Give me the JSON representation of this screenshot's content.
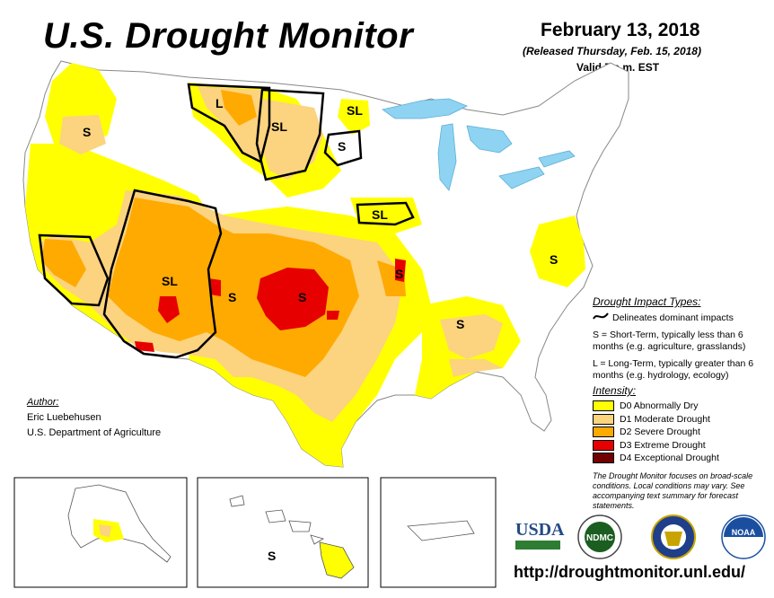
{
  "header": {
    "title": "U.S. Drought Monitor",
    "date": "February 13, 2018",
    "released": "(Released Thursday, Feb. 15, 2018)",
    "valid": "Valid 7 a.m. EST"
  },
  "map": {
    "impact_labels": [
      "L",
      "SL",
      "SL",
      "S",
      "S",
      "SL",
      "SL",
      "S",
      "S",
      "S",
      "S",
      "S",
      "S"
    ],
    "colors": {
      "water": "#8fd3f2",
      "land": "#ffffff",
      "d0": "#ffff00",
      "d1": "#fcd37f",
      "d2": "#ffaa00",
      "d3": "#e60000",
      "d4": "#730000"
    }
  },
  "author": {
    "heading": "Author:",
    "name": "Eric Luebehusen",
    "org": "U.S. Department of Agriculture"
  },
  "legend": {
    "impact_heading": "Drought Impact Types:",
    "delineates": "Delineates dominant impacts",
    "short_term": "S = Short-Term, typically less than 6 months (e.g. agriculture, grasslands)",
    "long_term": "L = Long-Term, typically greater than 6 months (e.g. hydrology, ecology)",
    "intensity_heading": "Intensity:",
    "levels": [
      {
        "label": "D0 Abnormally Dry",
        "color": "#ffff00"
      },
      {
        "label": "D1 Moderate Drought",
        "color": "#fcd37f"
      },
      {
        "label": "D2 Severe Drought",
        "color": "#ffaa00"
      },
      {
        "label": "D3 Extreme Drought",
        "color": "#e60000"
      },
      {
        "label": "D4 Exceptional Drought",
        "color": "#730000"
      }
    ]
  },
  "note": "The Drought Monitor focuses on broad-scale conditions. Local conditions may vary. See accompanying text summary for forecast statements.",
  "logos": {
    "usda": "USDA",
    "ndmc": "NDMC",
    "noaa": "NOAA"
  },
  "url": "http://droughtmonitor.unl.edu/"
}
